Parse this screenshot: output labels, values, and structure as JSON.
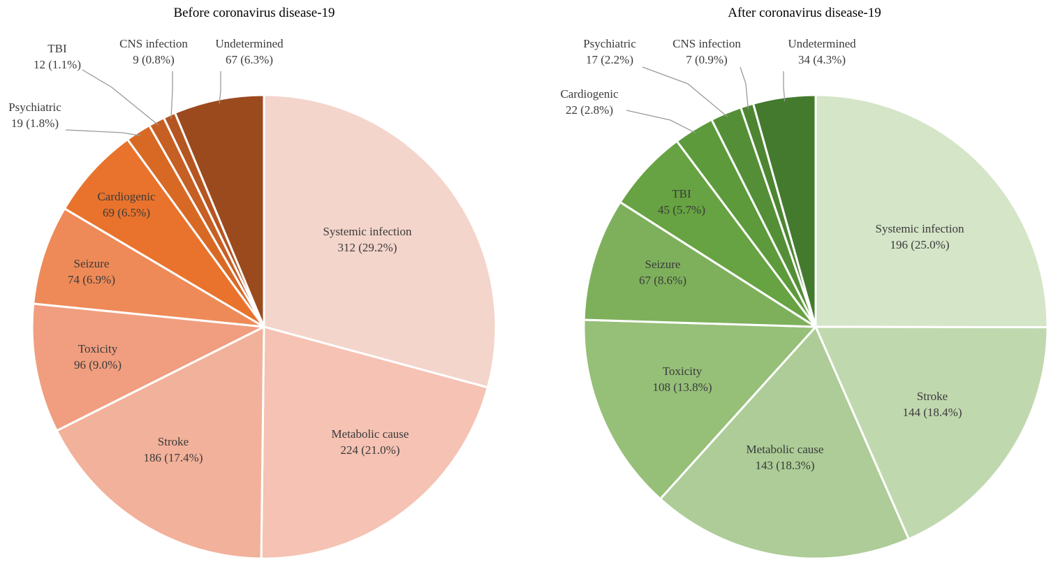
{
  "chart_data": [
    {
      "type": "pie",
      "title": "Before coronavirus disease-19",
      "slices": [
        {
          "label": "Systemic infection",
          "value": 312,
          "value_label": "312 (29.2%)",
          "color": "#f4d5cb"
        },
        {
          "label": "Metabolic cause",
          "value": 224,
          "value_label": "224 (21.0%)",
          "color": "#f5c2b3"
        },
        {
          "label": "Stroke",
          "value": 186,
          "value_label": "186 (17.4%)",
          "color": "#f2b19a"
        },
        {
          "label": "Toxicity",
          "value": 96,
          "value_label": "96 (9.0%)",
          "color": "#f09e7f"
        },
        {
          "label": "Seizure",
          "value": 74,
          "value_label": "74 (6.9%)",
          "color": "#ee8a58"
        },
        {
          "label": "Cardiogenic",
          "value": 69,
          "value_label": "69 (6.5%)",
          "color": "#e9732c"
        },
        {
          "label": "Psychiatric",
          "value": 19,
          "value_label": "19 (1.8%)",
          "color": "#d86925"
        },
        {
          "label": "TBI",
          "value": 12,
          "value_label": "12 (1.1%)",
          "color": "#c65f24"
        },
        {
          "label": "CNS infection",
          "value": 9,
          "value_label": "9 (0.8%)",
          "color": "#b55522"
        },
        {
          "label": "Undetermined",
          "value": 67,
          "value_label": "67 (6.3%)",
          "color": "#9b4a1e"
        }
      ]
    },
    {
      "type": "pie",
      "title": "After coronavirus disease-19",
      "slices": [
        {
          "label": "Systemic infection",
          "value": 196,
          "value_label": "196 (25.0%)",
          "color": "#d5e5c8"
        },
        {
          "label": "Stroke",
          "value": 144,
          "value_label": "144 (18.4%)",
          "color": "#c0d8ae"
        },
        {
          "label": "Metabolic cause",
          "value": 143,
          "value_label": "143 (18.3%)",
          "color": "#adcc97"
        },
        {
          "label": "Toxicity",
          "value": 108,
          "value_label": "108 (13.8%)",
          "color": "#96bf78"
        },
        {
          "label": "Seizure",
          "value": 67,
          "value_label": "67 (8.6%)",
          "color": "#7eb05c"
        },
        {
          "label": "TBI",
          "value": 45,
          "value_label": "45 (5.7%)",
          "color": "#67a342"
        },
        {
          "label": "Cardiogenic",
          "value": 22,
          "value_label": "22 (2.8%)",
          "color": "#5c9a3c"
        },
        {
          "label": "Psychiatric",
          "value": 17,
          "value_label": "17 (2.2%)",
          "color": "#548f37"
        },
        {
          "label": "CNS infection",
          "value": 7,
          "value_label": "7 (0.9%)",
          "color": "#4d8533"
        },
        {
          "label": "Undetermined",
          "value": 34,
          "value_label": "34 (4.3%)",
          "color": "#447a2e"
        }
      ]
    }
  ]
}
